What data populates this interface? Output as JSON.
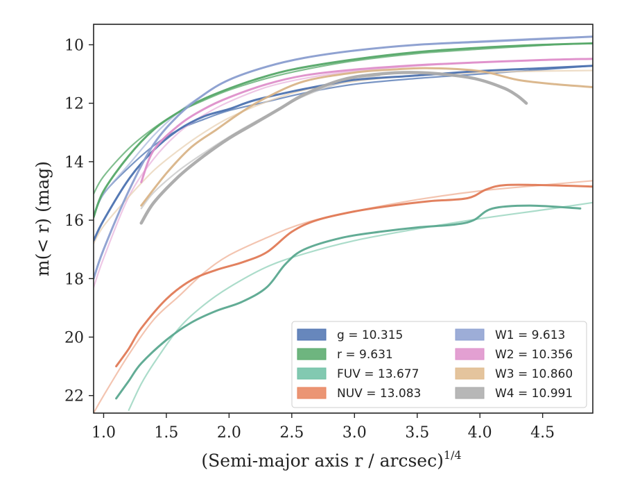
{
  "chart_data": {
    "type": "line",
    "xlabel": "(Semi-major axis r / arcsec)",
    "xlabel_superscript": "1/4",
    "ylabel": "m(< r) (mag)",
    "xlim": [
      0.92,
      4.9
    ],
    "ylim": [
      22.6,
      9.3
    ],
    "y_inverted": true,
    "grid": false,
    "legend_position": "lower-right",
    "xticks": [
      "1.0",
      "1.5",
      "2.0",
      "2.5",
      "3.0",
      "3.5",
      "4.0",
      "4.5"
    ],
    "yticks": [
      "10",
      "12",
      "14",
      "16",
      "18",
      "20",
      "22"
    ],
    "legend": [
      {
        "label": "g = 10.315",
        "color": "#4c72b0"
      },
      {
        "label": "r = 9.631",
        "color": "#55a868"
      },
      {
        "label": "FUV = 13.677",
        "color": "#6cbfa3"
      },
      {
        "label": "NUV = 13.083",
        "color": "#e8825c"
      },
      {
        "label": "W1 = 9.613",
        "color": "#8c9fd0"
      },
      {
        "label": "W2 = 10.356",
        "color": "#de8fca"
      },
      {
        "label": "W3 = 10.860",
        "color": "#dfba8c"
      },
      {
        "label": "W4 = 10.991",
        "color": "#aaaaaa"
      }
    ],
    "series": [
      {
        "name": "g",
        "color": "#4c72b0",
        "style": "measured",
        "x": [
          0.92,
          1.0,
          1.2,
          1.4,
          1.6,
          1.8,
          2.0,
          2.2,
          2.5,
          2.8,
          3.0,
          3.5,
          4.0,
          4.5,
          4.9
        ],
        "y": [
          16.7,
          16.0,
          14.6,
          13.6,
          12.9,
          12.45,
          12.2,
          11.9,
          11.6,
          11.35,
          11.2,
          11.05,
          10.9,
          10.8,
          10.72
        ]
      },
      {
        "name": "g",
        "color": "#4c72b0",
        "style": "model",
        "x": [
          0.92,
          1.0,
          1.2,
          1.4,
          1.6,
          1.8,
          2.0,
          2.3,
          2.6,
          3.0,
          3.5,
          4.0,
          4.5,
          4.9
        ],
        "y": [
          15.9,
          15.1,
          14.2,
          13.45,
          12.9,
          12.55,
          12.25,
          11.95,
          11.65,
          11.35,
          11.15,
          11.0,
          10.85,
          10.72
        ]
      },
      {
        "name": "r",
        "color": "#55a868",
        "style": "measured",
        "x": [
          0.92,
          1.0,
          1.2,
          1.4,
          1.6,
          1.8,
          2.0,
          2.2,
          2.5,
          3.0,
          3.5,
          4.0,
          4.5,
          4.9
        ],
        "y": [
          15.9,
          15.0,
          13.8,
          12.9,
          12.3,
          11.85,
          11.5,
          11.2,
          10.85,
          10.5,
          10.25,
          10.1,
          10.0,
          9.95
        ]
      },
      {
        "name": "r",
        "color": "#55a868",
        "style": "model",
        "x": [
          0.92,
          1.0,
          1.2,
          1.4,
          1.6,
          1.8,
          2.0,
          2.3,
          2.6,
          3.0,
          3.5,
          4.0,
          4.5,
          4.9
        ],
        "y": [
          15.1,
          14.5,
          13.55,
          12.85,
          12.3,
          11.9,
          11.55,
          11.15,
          10.85,
          10.55,
          10.3,
          10.15,
          10.02,
          9.95
        ]
      },
      {
        "name": "FUV",
        "color": "#5aa88f",
        "style": "measured",
        "x": [
          1.1,
          1.2,
          1.3,
          1.5,
          1.7,
          1.9,
          2.1,
          2.3,
          2.45,
          2.6,
          2.9,
          3.2,
          3.5,
          3.8,
          3.95,
          4.1,
          4.4,
          4.8
        ],
        "y": [
          22.1,
          21.5,
          20.9,
          20.1,
          19.5,
          19.1,
          18.8,
          18.3,
          17.5,
          17.0,
          16.6,
          16.4,
          16.25,
          16.15,
          16.0,
          15.6,
          15.5,
          15.6
        ]
      },
      {
        "name": "FUV",
        "color": "#8fd0b8",
        "style": "model",
        "x": [
          1.2,
          1.3,
          1.4,
          1.6,
          1.8,
          2.0,
          2.3,
          2.6,
          3.0,
          3.5,
          4.0,
          4.5,
          4.9
        ],
        "y": [
          22.5,
          21.6,
          20.9,
          19.7,
          18.9,
          18.3,
          17.6,
          17.15,
          16.7,
          16.3,
          15.95,
          15.65,
          15.4
        ]
      },
      {
        "name": "NUV",
        "color": "#e07a56",
        "style": "measured",
        "x": [
          1.1,
          1.2,
          1.3,
          1.5,
          1.7,
          1.9,
          2.1,
          2.3,
          2.5,
          2.7,
          3.0,
          3.3,
          3.6,
          3.9,
          4.05,
          4.2,
          4.5,
          4.9
        ],
        "y": [
          21.0,
          20.4,
          19.7,
          18.7,
          18.05,
          17.7,
          17.45,
          17.1,
          16.4,
          16.0,
          15.7,
          15.5,
          15.35,
          15.25,
          14.95,
          14.8,
          14.8,
          14.85
        ]
      },
      {
        "name": "NUV",
        "color": "#efb095",
        "style": "model",
        "x": [
          0.92,
          1.0,
          1.2,
          1.4,
          1.6,
          1.8,
          2.0,
          2.3,
          2.6,
          3.0,
          3.5,
          4.0,
          4.5,
          4.9
        ],
        "y": [
          22.6,
          22.0,
          20.6,
          19.4,
          18.6,
          17.8,
          17.2,
          16.6,
          16.1,
          15.7,
          15.3,
          15.0,
          14.8,
          14.65
        ]
      },
      {
        "name": "W1",
        "color": "#8c9fd0",
        "style": "measured",
        "x": [
          0.92,
          1.0,
          1.2,
          1.4,
          1.6,
          1.8,
          2.0,
          2.3,
          2.6,
          3.0,
          3.5,
          4.0,
          4.5,
          4.9
        ],
        "y": [
          18.0,
          17.0,
          15.0,
          13.4,
          12.4,
          11.7,
          11.2,
          10.75,
          10.45,
          10.2,
          10.0,
          9.9,
          9.8,
          9.72
        ]
      },
      {
        "name": "W1",
        "color": "#aab8dc",
        "style": "model",
        "x": [
          0.92,
          1.0,
          1.2,
          1.4,
          1.6,
          1.8,
          2.0,
          2.3,
          2.6,
          3.0,
          3.5,
          4.0,
          4.5,
          4.9
        ],
        "y": [
          15.8,
          15.1,
          14.1,
          13.1,
          12.3,
          11.7,
          11.2,
          10.75,
          10.45,
          10.2,
          10.0,
          9.88,
          9.78,
          9.72
        ]
      },
      {
        "name": "W2",
        "color": "#de8fca",
        "style": "measured",
        "x": [
          1.3,
          1.4,
          1.6,
          1.8,
          2.0,
          2.3,
          2.6,
          3.0,
          3.5,
          4.0,
          4.5,
          4.9
        ],
        "y": [
          14.7,
          13.6,
          12.75,
          12.2,
          11.8,
          11.35,
          11.05,
          10.85,
          10.7,
          10.6,
          10.52,
          10.48
        ]
      },
      {
        "name": "W2",
        "color": "#e8b4dc",
        "style": "model",
        "x": [
          0.92,
          1.0,
          1.2,
          1.4,
          1.6,
          1.8,
          2.0,
          2.3,
          2.6,
          3.0,
          3.5,
          4.0,
          4.5,
          4.9
        ],
        "y": [
          18.3,
          17.3,
          15.2,
          13.9,
          13.0,
          12.4,
          11.95,
          11.45,
          11.15,
          10.9,
          10.72,
          10.6,
          10.52,
          10.48
        ]
      },
      {
        "name": "W3",
        "color": "#d9b488",
        "style": "measured",
        "x": [
          1.3,
          1.5,
          1.7,
          1.9,
          2.1,
          2.3,
          2.6,
          3.0,
          3.3,
          3.6,
          4.0,
          4.3,
          4.6,
          4.9
        ],
        "y": [
          15.5,
          14.4,
          13.5,
          12.9,
          12.3,
          11.8,
          11.25,
          10.95,
          10.85,
          10.8,
          10.9,
          11.2,
          11.35,
          11.45
        ]
      },
      {
        "name": "W3",
        "color": "#e8d2b4",
        "style": "model",
        "x": [
          0.92,
          1.0,
          1.2,
          1.4,
          1.6,
          1.8,
          2.0,
          2.3,
          2.6,
          3.0,
          3.5,
          4.0,
          4.5,
          4.9
        ],
        "y": [
          16.8,
          16.2,
          15.2,
          14.3,
          13.6,
          13.0,
          12.5,
          11.95,
          11.55,
          11.25,
          11.05,
          10.95,
          10.9,
          10.88
        ]
      },
      {
        "name": "W4",
        "color": "#aaaaaa",
        "style": "measured",
        "x": [
          1.3,
          1.4,
          1.6,
          1.8,
          2.0,
          2.2,
          2.4,
          2.6,
          2.9,
          3.2,
          3.5,
          3.8,
          4.0,
          4.2,
          4.3,
          4.37
        ],
        "y": [
          16.1,
          15.4,
          14.5,
          13.8,
          13.2,
          12.7,
          12.2,
          11.7,
          11.2,
          11.0,
          10.95,
          11.05,
          11.2,
          11.5,
          11.75,
          12.0
        ]
      },
      {
        "name": "W4",
        "color": "#c4c4c4",
        "style": "model",
        "x": [
          1.3,
          1.4,
          1.6,
          1.8,
          2.0,
          2.2,
          2.4,
          2.6,
          2.9,
          3.2
        ],
        "y": [
          15.6,
          15.05,
          14.3,
          13.7,
          13.15,
          12.65,
          12.2,
          11.75,
          11.3,
          11.05
        ]
      }
    ]
  }
}
